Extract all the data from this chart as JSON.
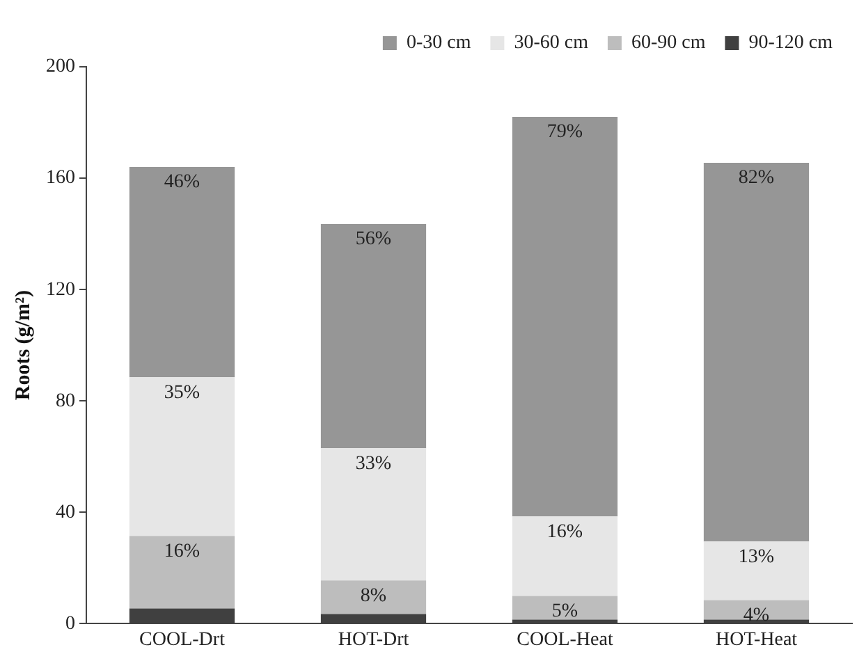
{
  "chart_data": {
    "type": "bar",
    "stacked": true,
    "ylabel": "Roots (g/m²)",
    "categories": [
      "COOL-Drt",
      "HOT-Drt",
      "COOL-Heat",
      "HOT-Heat"
    ],
    "series": [
      {
        "name": "90-120 cm",
        "color": "#404040",
        "values": [
          5.5,
          3.5,
          1.5,
          1.5
        ]
      },
      {
        "name": "60-90 cm",
        "color": "#bdbdbd",
        "values": [
          26,
          12,
          8.5,
          7
        ]
      },
      {
        "name": "30-60 cm",
        "color": "#e6e6e6",
        "values": [
          57,
          47.5,
          28.5,
          21
        ]
      },
      {
        "name": "0-30 cm",
        "color": "#969696",
        "values": [
          75.5,
          80.5,
          143.5,
          136
        ]
      }
    ],
    "annotations": [
      {
        "text": "46%",
        "x": "COOL-Drt",
        "y": 164
      },
      {
        "text": "35%",
        "x": "COOL-Drt",
        "y": 88.5
      },
      {
        "text": "16%",
        "x": "COOL-Drt",
        "y": 31.5
      },
      {
        "text": "56%",
        "x": "HOT-Drt",
        "y": 143.5
      },
      {
        "text": "33%",
        "x": "HOT-Drt",
        "y": 63
      },
      {
        "text": "8%",
        "x": "HOT-Drt",
        "y": 15.5
      },
      {
        "text": "79%",
        "x": "COOL-Heat",
        "y": 182
      },
      {
        "text": "16%",
        "x": "COOL-Heat",
        "y": 38.5
      },
      {
        "text": "5%",
        "x": "COOL-Heat",
        "y": 10
      },
      {
        "text": "82%",
        "x": "HOT-Heat",
        "y": 165.5
      },
      {
        "text": "13%",
        "x": "HOT-Heat",
        "y": 29.5
      },
      {
        "text": "4%",
        "x": "HOT-Heat",
        "y": 8.5
      }
    ],
    "ylim": [
      0,
      200
    ],
    "yticks": [
      0,
      40,
      80,
      120,
      160,
      200
    ],
    "grid": false,
    "legend": "top"
  }
}
